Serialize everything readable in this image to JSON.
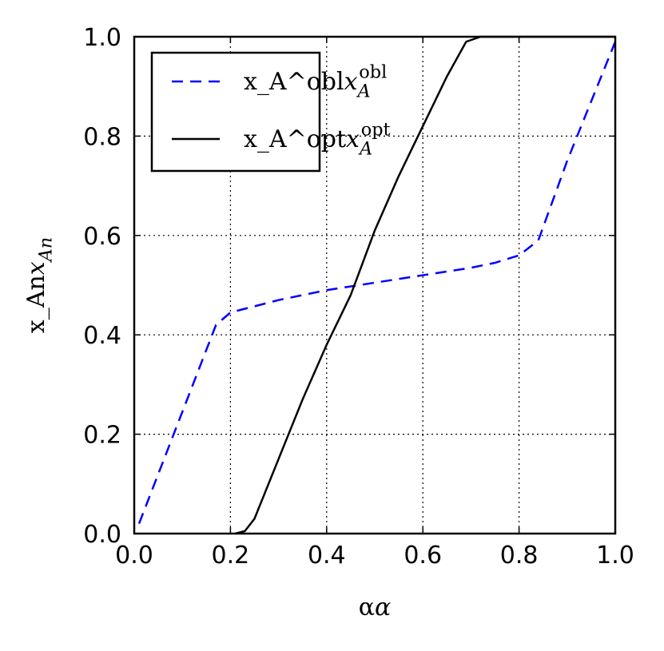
{
  "chart_data": {
    "type": "line",
    "xlabel": "α",
    "ylabel": "x_An",
    "xlim": [
      0,
      1
    ],
    "ylim": [
      0,
      1
    ],
    "xticks": [
      {
        "value": 0,
        "label": "0.0"
      },
      0.2,
      0.4,
      0.6,
      0.8,
      {
        "value": 1,
        "label": "1.0"
      }
    ],
    "yticks": [
      {
        "value": 0,
        "label": "0.0"
      },
      0.2,
      0.4,
      0.6,
      0.8,
      {
        "value": 1,
        "label": "1.0"
      }
    ],
    "grid": true,
    "legend": "upper left",
    "series": [
      {
        "name": "x_A^obl",
        "color": "#0000ff",
        "dash": "dashed",
        "x": [
          0.01,
          0.17,
          0.2,
          0.3,
          0.4,
          0.5,
          0.6,
          0.7,
          0.75,
          0.8,
          0.84,
          0.9,
          0.95,
          1.0
        ],
        "values": [
          0.02,
          0.42,
          0.445,
          0.47,
          0.49,
          0.505,
          0.52,
          0.535,
          0.545,
          0.56,
          0.59,
          0.75,
          0.87,
          0.99
        ]
      },
      {
        "name": "x_A^opt",
        "color": "#000000",
        "dash": "solid",
        "x": [
          0.21,
          0.23,
          0.25,
          0.3,
          0.35,
          0.4,
          0.45,
          0.5,
          0.55,
          0.6,
          0.65,
          0.69,
          0.72,
          1.0
        ],
        "values": [
          0,
          0.005,
          0.03,
          0.15,
          0.27,
          0.38,
          0.48,
          0.61,
          0.72,
          0.82,
          0.92,
          0.99,
          1.0,
          1.0
        ]
      }
    ]
  }
}
